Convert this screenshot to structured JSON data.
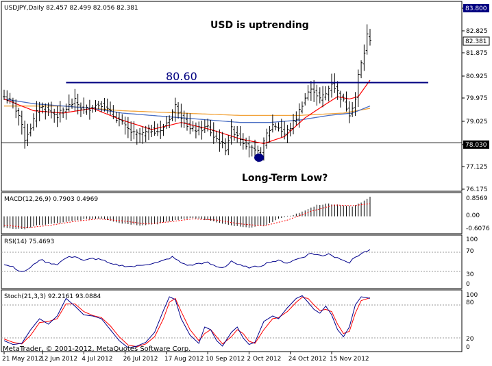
{
  "window": {
    "header": "USDJPY,Daily  82.457 82.499 82.056 82.381",
    "footer": "MetaTrader, © 2001-2012, MetaQuotes Software Corp."
  },
  "annotations": {
    "trend_label": "USD is uptrending",
    "level_label": "80.60",
    "low_label": "Long-Term Low?"
  },
  "colors": {
    "price": "#000000",
    "ma_fast": "#ff0000",
    "ma_mid": "#4a6fc4",
    "ma_slow": "#f2a33a",
    "level_line": "#000080",
    "marker": "#000080",
    "macd_signal": "#ff0000",
    "rsi": "#00008b",
    "stoch_main": "#00008b",
    "stoch_signal": "#ff0000"
  },
  "chart_data": [
    {
      "type": "line",
      "name": "price",
      "ylim": [
        76.0,
        84.0
      ],
      "y_ticks": [
        "83.800",
        "82.825",
        "81.875",
        "80.925",
        "79.975",
        "79.025",
        "78.030",
        "77.125",
        "76.175"
      ],
      "current_price": "82.381",
      "x_labels": [
        "21 May 2012",
        "12 Jun 2012",
        "4 Jul 2012",
        "26 Jul 2012",
        "17 Aug 2012",
        "10 Sep 2012",
        "2 Oct 2012",
        "24 Oct 2012",
        "15 Nov 2012"
      ],
      "x_label_bar_index": [
        0,
        13,
        27,
        41,
        55,
        69,
        83,
        97,
        111
      ],
      "n_bars": 125,
      "close_anchors": [
        [
          0,
          80.0
        ],
        [
          3,
          79.7
        ],
        [
          5,
          79.2
        ],
        [
          7,
          78.2
        ],
        [
          9,
          78.7
        ],
        [
          12,
          79.6
        ],
        [
          15,
          79.4
        ],
        [
          18,
          79.2
        ],
        [
          21,
          79.5
        ],
        [
          24,
          79.8
        ],
        [
          27,
          79.4
        ],
        [
          30,
          79.6
        ],
        [
          33,
          79.7
        ],
        [
          36,
          79.3
        ],
        [
          39,
          79.0
        ],
        [
          41,
          78.7
        ],
        [
          44,
          78.4
        ],
        [
          47,
          78.4
        ],
        [
          50,
          78.6
        ],
        [
          53,
          78.5
        ],
        [
          56,
          79.1
        ],
        [
          58,
          79.6
        ],
        [
          60,
          79.2
        ],
        [
          63,
          78.6
        ],
        [
          66,
          78.6
        ],
        [
          69,
          78.7
        ],
        [
          71,
          78.3
        ],
        [
          73,
          78.1
        ],
        [
          75,
          77.8
        ],
        [
          77,
          78.6
        ],
        [
          79,
          78.4
        ],
        [
          81,
          78.1
        ],
        [
          83,
          77.9
        ],
        [
          85,
          77.6
        ],
        [
          87,
          77.6
        ],
        [
          89,
          78.4
        ],
        [
          91,
          78.8
        ],
        [
          93,
          78.7
        ],
        [
          95,
          78.4
        ],
        [
          97,
          78.7
        ],
        [
          99,
          79.1
        ],
        [
          101,
          79.7
        ],
        [
          103,
          80.2
        ],
        [
          105,
          80.3
        ],
        [
          107,
          79.9
        ],
        [
          109,
          80.1
        ],
        [
          111,
          80.6
        ],
        [
          113,
          80.2
        ],
        [
          115,
          79.8
        ],
        [
          117,
          79.3
        ],
        [
          119,
          79.9
        ],
        [
          120,
          80.9
        ],
        [
          121,
          81.4
        ],
        [
          122,
          81.9
        ],
        [
          123,
          82.6
        ],
        [
          124,
          82.38
        ]
      ],
      "level": 80.6,
      "level_from_bar": 21,
      "level_to_bar": 125,
      "low_marker": {
        "bar": 85,
        "value": 77.4
      },
      "ma_fast_anchors": [
        [
          0,
          79.9
        ],
        [
          10,
          79.4
        ],
        [
          20,
          79.3
        ],
        [
          30,
          79.5
        ],
        [
          40,
          79.0
        ],
        [
          50,
          78.6
        ],
        [
          60,
          78.9
        ],
        [
          70,
          78.6
        ],
        [
          80,
          78.2
        ],
        [
          88,
          78.0
        ],
        [
          95,
          78.3
        ],
        [
          102,
          79.1
        ],
        [
          108,
          79.6
        ],
        [
          113,
          80.0
        ],
        [
          117,
          79.9
        ],
        [
          120,
          80.0
        ],
        [
          124,
          80.7
        ]
      ],
      "ma_mid_anchors": [
        [
          0,
          79.9
        ],
        [
          10,
          79.7
        ],
        [
          20,
          79.6
        ],
        [
          30,
          79.5
        ],
        [
          40,
          79.3
        ],
        [
          50,
          79.2
        ],
        [
          60,
          79.1
        ],
        [
          70,
          79.0
        ],
        [
          80,
          78.9
        ],
        [
          90,
          78.9
        ],
        [
          100,
          79.0
        ],
        [
          110,
          79.2
        ],
        [
          118,
          79.3
        ],
        [
          124,
          79.6
        ]
      ],
      "ma_slow_anchors": [
        [
          0,
          79.6
        ],
        [
          20,
          79.6
        ],
        [
          40,
          79.4
        ],
        [
          60,
          79.3
        ],
        [
          80,
          79.2
        ],
        [
          100,
          79.2
        ],
        [
          115,
          79.3
        ],
        [
          124,
          79.5
        ]
      ]
    },
    {
      "type": "bar",
      "name": "MACD(12,26,9) 0.7903 0.4969",
      "ylim": [
        -0.6076,
        0.8569
      ],
      "y_ticks": [
        "0.8569",
        "0.00",
        "-0.6076"
      ],
      "hist_anchors": [
        [
          0,
          -0.45
        ],
        [
          6,
          -0.52
        ],
        [
          12,
          -0.35
        ],
        [
          20,
          -0.25
        ],
        [
          27,
          -0.12
        ],
        [
          33,
          -0.08
        ],
        [
          40,
          -0.28
        ],
        [
          46,
          -0.35
        ],
        [
          52,
          -0.3
        ],
        [
          58,
          -0.15
        ],
        [
          64,
          -0.05
        ],
        [
          70,
          -0.18
        ],
        [
          76,
          -0.35
        ],
        [
          82,
          -0.45
        ],
        [
          88,
          -0.38
        ],
        [
          94,
          -0.05
        ],
        [
          100,
          0.12
        ],
        [
          106,
          0.45
        ],
        [
          110,
          0.5
        ],
        [
          114,
          0.45
        ],
        [
          118,
          0.38
        ],
        [
          121,
          0.55
        ],
        [
          124,
          0.79
        ]
      ],
      "signal_anchors": [
        [
          0,
          -0.35
        ],
        [
          8,
          -0.45
        ],
        [
          16,
          -0.35
        ],
        [
          24,
          -0.2
        ],
        [
          32,
          -0.1
        ],
        [
          40,
          -0.18
        ],
        [
          48,
          -0.3
        ],
        [
          56,
          -0.22
        ],
        [
          64,
          -0.1
        ],
        [
          72,
          -0.15
        ],
        [
          80,
          -0.3
        ],
        [
          88,
          -0.38
        ],
        [
          96,
          -0.15
        ],
        [
          104,
          0.2
        ],
        [
          112,
          0.45
        ],
        [
          118,
          0.42
        ],
        [
          124,
          0.5
        ]
      ]
    },
    {
      "type": "line",
      "name": "RSI(14) 75.4693",
      "ylim": [
        0,
        100
      ],
      "y_ticks": [
        "100",
        "70",
        "30",
        "0"
      ],
      "levels": [
        70,
        30
      ],
      "values_anchors": [
        [
          0,
          45
        ],
        [
          3,
          40
        ],
        [
          6,
          28
        ],
        [
          9,
          38
        ],
        [
          12,
          55
        ],
        [
          15,
          48
        ],
        [
          18,
          45
        ],
        [
          21,
          58
        ],
        [
          24,
          62
        ],
        [
          27,
          52
        ],
        [
          30,
          57
        ],
        [
          33,
          55
        ],
        [
          36,
          45
        ],
        [
          40,
          42
        ],
        [
          44,
          40
        ],
        [
          48,
          45
        ],
        [
          52,
          48
        ],
        [
          55,
          55
        ],
        [
          57,
          60
        ],
        [
          60,
          48
        ],
        [
          63,
          42
        ],
        [
          66,
          47
        ],
        [
          69,
          48
        ],
        [
          71,
          42
        ],
        [
          73,
          38
        ],
        [
          75,
          40
        ],
        [
          77,
          52
        ],
        [
          79,
          45
        ],
        [
          81,
          40
        ],
        [
          84,
          38
        ],
        [
          87,
          42
        ],
        [
          90,
          50
        ],
        [
          93,
          52
        ],
        [
          96,
          48
        ],
        [
          99,
          55
        ],
        [
          102,
          62
        ],
        [
          104,
          68
        ],
        [
          106,
          65
        ],
        [
          108,
          62
        ],
        [
          110,
          68
        ],
        [
          112,
          60
        ],
        [
          115,
          55
        ],
        [
          117,
          48
        ],
        [
          119,
          60
        ],
        [
          121,
          67
        ],
        [
          124,
          75.47
        ]
      ]
    },
    {
      "type": "line",
      "name": "Stoch(21,3,3) 92.2161 93.0884",
      "ylim": [
        0,
        100
      ],
      "y_ticks": [
        "100",
        "80",
        "20",
        "0"
      ],
      "levels": [
        80,
        20
      ],
      "main_anchors": [
        [
          0,
          15
        ],
        [
          3,
          8
        ],
        [
          6,
          10
        ],
        [
          9,
          35
        ],
        [
          12,
          55
        ],
        [
          15,
          45
        ],
        [
          18,
          60
        ],
        [
          21,
          92
        ],
        [
          24,
          78
        ],
        [
          27,
          62
        ],
        [
          30,
          60
        ],
        [
          33,
          55
        ],
        [
          36,
          35
        ],
        [
          39,
          15
        ],
        [
          42,
          2
        ],
        [
          45,
          5
        ],
        [
          48,
          12
        ],
        [
          51,
          30
        ],
        [
          54,
          70
        ],
        [
          56,
          95
        ],
        [
          58,
          90
        ],
        [
          60,
          55
        ],
        [
          63,
          25
        ],
        [
          66,
          10
        ],
        [
          68,
          40
        ],
        [
          70,
          35
        ],
        [
          72,
          15
        ],
        [
          74,
          5
        ],
        [
          77,
          30
        ],
        [
          79,
          40
        ],
        [
          81,
          20
        ],
        [
          83,
          8
        ],
        [
          85,
          12
        ],
        [
          88,
          50
        ],
        [
          91,
          60
        ],
        [
          93,
          55
        ],
        [
          96,
          75
        ],
        [
          99,
          92
        ],
        [
          101,
          97
        ],
        [
          103,
          85
        ],
        [
          105,
          72
        ],
        [
          107,
          65
        ],
        [
          109,
          78
        ],
        [
          111,
          62
        ],
        [
          113,
          35
        ],
        [
          115,
          22
        ],
        [
          117,
          40
        ],
        [
          119,
          80
        ],
        [
          121,
          95
        ],
        [
          124,
          92.22
        ]
      ],
      "signal_anchors": [
        [
          0,
          18
        ],
        [
          3,
          12
        ],
        [
          6,
          9
        ],
        [
          9,
          25
        ],
        [
          12,
          48
        ],
        [
          15,
          50
        ],
        [
          18,
          55
        ],
        [
          21,
          82
        ],
        [
          24,
          82
        ],
        [
          27,
          68
        ],
        [
          30,
          61
        ],
        [
          33,
          57
        ],
        [
          36,
          42
        ],
        [
          39,
          22
        ],
        [
          42,
          7
        ],
        [
          45,
          4
        ],
        [
          48,
          9
        ],
        [
          51,
          22
        ],
        [
          54,
          55
        ],
        [
          56,
          85
        ],
        [
          58,
          92
        ],
        [
          60,
          68
        ],
        [
          63,
          35
        ],
        [
          66,
          15
        ],
        [
          68,
          28
        ],
        [
          70,
          35
        ],
        [
          72,
          22
        ],
        [
          74,
          9
        ],
        [
          77,
          22
        ],
        [
          79,
          35
        ],
        [
          81,
          28
        ],
        [
          83,
          14
        ],
        [
          85,
          10
        ],
        [
          88,
          35
        ],
        [
          91,
          55
        ],
        [
          93,
          57
        ],
        [
          96,
          68
        ],
        [
          99,
          85
        ],
        [
          101,
          94
        ],
        [
          103,
          92
        ],
        [
          105,
          80
        ],
        [
          107,
          70
        ],
        [
          109,
          72
        ],
        [
          111,
          68
        ],
        [
          113,
          45
        ],
        [
          115,
          28
        ],
        [
          117,
          32
        ],
        [
          119,
          65
        ],
        [
          121,
          88
        ],
        [
          124,
          93.09
        ]
      ]
    }
  ]
}
